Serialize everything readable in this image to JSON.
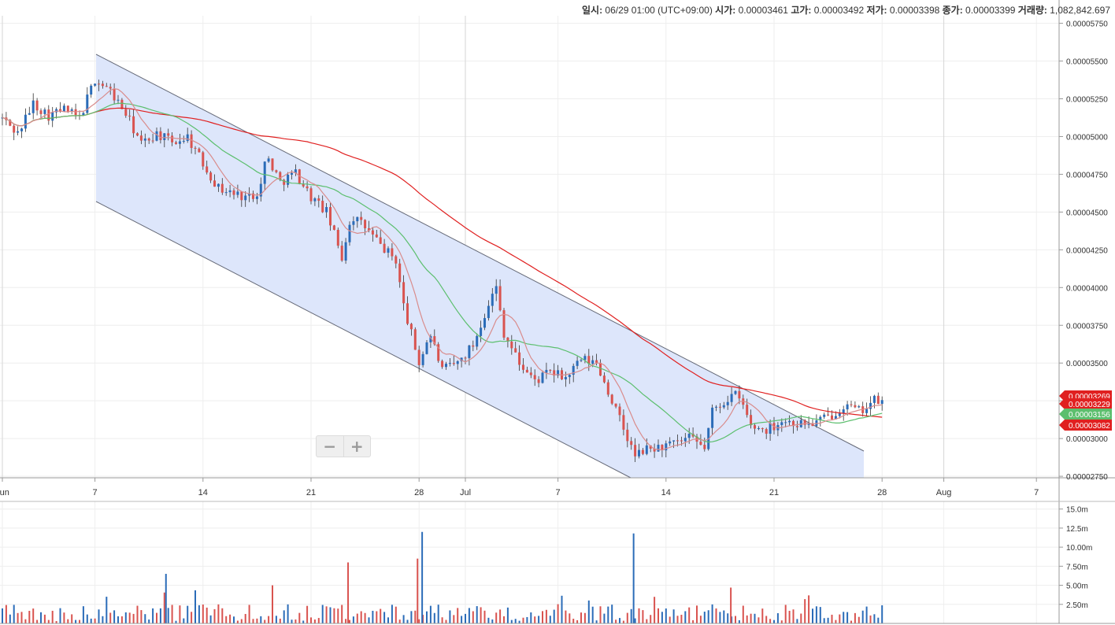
{
  "header": {
    "items": [
      {
        "key": "일시:",
        "value": "06/29 01:00 (UTC+09:00)"
      },
      {
        "key": "시가:",
        "value": "0.00003461"
      },
      {
        "key": "고가:",
        "value": "0.00003492"
      },
      {
        "key": "저가:",
        "value": "0.00003398"
      },
      {
        "key": "종가:",
        "value": "0.00003399"
      },
      {
        "key": "거래량:",
        "value": "1,082,842.697"
      }
    ]
  },
  "zoom": {
    "minus": "−",
    "plus": "+"
  },
  "colors": {
    "up": "#2b6cb8",
    "down": "#d9534f",
    "ma_short": "#d98c8c",
    "ma_mid": "#5cbf6e",
    "ma_long": "#e02020",
    "channel_fill": "#dde6fb",
    "channel_line": "#666a78",
    "grid": "#eeeeee"
  },
  "chart_data": {
    "type": "candlestick",
    "y_ticks": [
      "0.00005750",
      "0.00005500",
      "0.00005250",
      "0.00005000",
      "0.00004750",
      "0.00004500",
      "0.00004250",
      "0.00004000",
      "0.00003750",
      "0.00003500",
      "0.00003250",
      "0.00003000",
      "0.00002750"
    ],
    "y_range": [
      2.74e-05,
      5.8e-05
    ],
    "x_ticks": [
      {
        "label": "Jun",
        "day": 0
      },
      {
        "label": "7",
        "day": 6
      },
      {
        "label": "14",
        "day": 13
      },
      {
        "label": "21",
        "day": 20
      },
      {
        "label": "28",
        "day": 27
      },
      {
        "label": "Jul",
        "day": 30
      },
      {
        "label": "7",
        "day": 36
      },
      {
        "label": "14",
        "day": 43
      },
      {
        "label": "21",
        "day": 50
      },
      {
        "label": "28",
        "day": 57
      },
      {
        "label": "Aug",
        "day": 61
      },
      {
        "label": "7",
        "day": 67
      }
    ],
    "price_path": [
      [
        0.0,
        5.12e-05
      ],
      [
        1.0,
        5.02e-05
      ],
      [
        2.0,
        5.22e-05
      ],
      [
        3.0,
        5.14e-05
      ],
      [
        4.0,
        5.18e-05
      ],
      [
        5.0,
        5.12e-05
      ],
      [
        6.0,
        5.38e-05
      ],
      [
        7.0,
        5.3e-05
      ],
      [
        8.0,
        5.15e-05
      ],
      [
        9.0,
        4.95e-05
      ],
      [
        10.0,
        5.02e-05
      ],
      [
        11.0,
        4.96e-05
      ],
      [
        12.0,
        5e-05
      ],
      [
        13.0,
        4.82e-05
      ],
      [
        14.0,
        4.66e-05
      ],
      [
        15.0,
        4.62e-05
      ],
      [
        16.0,
        4.6e-05
      ],
      [
        16.7,
        4.65e-05
      ],
      [
        17.1,
        4.88e-05
      ],
      [
        18.0,
        4.7e-05
      ],
      [
        19.0,
        4.76e-05
      ],
      [
        20.0,
        4.6e-05
      ],
      [
        21.0,
        4.5e-05
      ],
      [
        22.0,
        4.2e-05
      ],
      [
        22.6,
        4.48e-05
      ],
      [
        23.5,
        4.4e-05
      ],
      [
        24.5,
        4.28e-05
      ],
      [
        25.5,
        4.18e-05
      ],
      [
        26.0,
        3.88e-05
      ],
      [
        27.0,
        3.5e-05
      ],
      [
        27.7,
        3.7e-05
      ],
      [
        28.5,
        3.45e-05
      ],
      [
        29.5,
        3.5e-05
      ],
      [
        30.5,
        3.62e-05
      ],
      [
        31.5,
        3.9e-05
      ],
      [
        32.0,
        4e-05
      ],
      [
        32.5,
        3.7e-05
      ],
      [
        33.5,
        3.5e-05
      ],
      [
        34.5,
        3.38e-05
      ],
      [
        35.5,
        3.44e-05
      ],
      [
        36.5,
        3.4e-05
      ],
      [
        37.5,
        3.52e-05
      ],
      [
        38.5,
        3.5e-05
      ],
      [
        39.5,
        3.25e-05
      ],
      [
        40.5,
        3e-05
      ],
      [
        41.0,
        2.88e-05
      ],
      [
        41.5,
        2.92e-05
      ],
      [
        42.5,
        2.94e-05
      ],
      [
        43.5,
        2.96e-05
      ],
      [
        44.5,
        3e-05
      ],
      [
        45.5,
        2.94e-05
      ],
      [
        46.0,
        3.18e-05
      ],
      [
        46.8,
        3.25e-05
      ],
      [
        47.4,
        3.3e-05
      ],
      [
        48.0,
        3.22e-05
      ],
      [
        48.5,
        3.08e-05
      ],
      [
        49.5,
        3.06e-05
      ],
      [
        50.5,
        3.12e-05
      ],
      [
        51.5,
        3.1e-05
      ],
      [
        52.5,
        3.1e-05
      ],
      [
        53.5,
        3.14e-05
      ],
      [
        54.5,
        3.22e-05
      ],
      [
        55.5,
        3.18e-05
      ],
      [
        56.5,
        3.25e-05
      ],
      [
        57.0,
        3.24e-05
      ]
    ],
    "last_price": 3.269e-05,
    "price_labels": [
      {
        "value": "0.00003269",
        "price": 3.269e-05,
        "color": "#e02020"
      },
      {
        "value": "0.00003229",
        "price": 3.229e-05,
        "color": "#e02020"
      },
      {
        "value": "0.00003156",
        "price": 3.156e-05,
        "color": "#5cbf6e"
      },
      {
        "value": "0.00003082",
        "price": 3.082e-05,
        "color": "#e02020"
      }
    ],
    "volume_ticks": [
      "15.0m",
      "12.5m",
      "10.00m",
      "7.50m",
      "5.00m",
      "2.50m"
    ],
    "volume_range": [
      0,
      16
    ],
    "volume_spikes": [
      {
        "day": 10.6,
        "value": 6.5,
        "color": "up"
      },
      {
        "day": 17.5,
        "value": 5.0,
        "color": "down"
      },
      {
        "day": 22.4,
        "value": 8.0,
        "color": "down"
      },
      {
        "day": 26.9,
        "value": 8.5,
        "color": "down"
      },
      {
        "day": 27.2,
        "value": 12.0,
        "color": "up"
      },
      {
        "day": 40.9,
        "value": 11.8,
        "color": "up"
      },
      {
        "day": 47.2,
        "value": 4.7,
        "color": "down"
      }
    ]
  }
}
